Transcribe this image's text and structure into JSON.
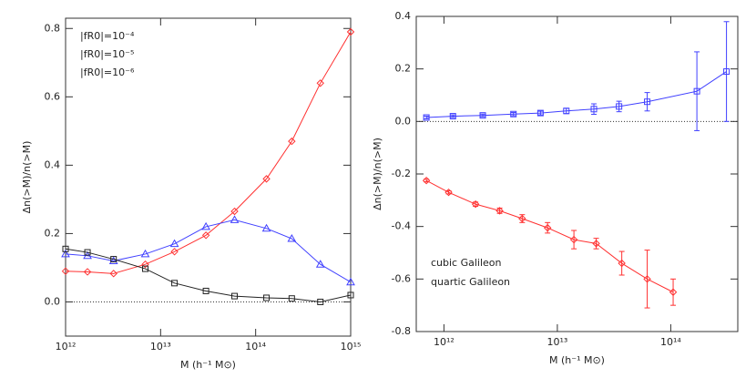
{
  "chart_data": [
    {
      "type": "line",
      "xscale": "log",
      "xlabel": "M  (h⁻¹ M⊙)",
      "ylabel": "Δn(>M)/n(>M)",
      "xlim": [
        1000000000000.0,
        1000000000000000.0
      ],
      "ylim": [
        -0.1,
        0.83
      ],
      "xticks": [
        {
          "value": 1000000000000.0,
          "label": "10¹²"
        },
        {
          "value": 10000000000000.0,
          "label": "10¹³"
        },
        {
          "value": 100000000000000.0,
          "label": "10¹⁴"
        },
        {
          "value": 1000000000000000.0,
          "label": "10¹⁵"
        }
      ],
      "yticks": [
        {
          "value": 0,
          "label": "0.0"
        },
        0.2,
        0.4,
        0.6,
        0.8
      ],
      "reference_line": 0,
      "legend": "upper left",
      "x": [
        1000000000000.0,
        1700000000000.0,
        3200000000000.0,
        6900000000000.0,
        14000000000000.0,
        30000000000000.0,
        60000000000000.0,
        130000000000000.0,
        240000000000000.0,
        480000000000000.0,
        1000000000000000.0
      ],
      "series": [
        {
          "name": "|fR0|=10⁻⁴",
          "color": "#ff3030",
          "marker": "diamond",
          "values": [
            0.09,
            0.088,
            0.083,
            0.11,
            0.147,
            0.195,
            0.265,
            0.36,
            0.47,
            0.64,
            0.79
          ]
        },
        {
          "name": "|fR0|=10⁻⁵",
          "color": "#4040ff",
          "marker": "triangle",
          "values": [
            0.14,
            0.135,
            0.12,
            0.14,
            0.17,
            0.22,
            0.24,
            0.215,
            0.185,
            0.11,
            0.058
          ]
        },
        {
          "name": "|fR0|=10⁻⁶",
          "color": "#222222",
          "marker": "square",
          "values": [
            0.155,
            0.145,
            0.125,
            0.097,
            0.055,
            0.032,
            0.017,
            0.012,
            0.01,
            0.0,
            0.02
          ]
        }
      ]
    },
    {
      "type": "errorbar",
      "xscale": "log",
      "xlabel": "M  (h⁻¹ M⊙)",
      "ylabel": "Δn(>M)/n(>M)",
      "xlim": [
        570000000000.0,
        390000000000000.0
      ],
      "ylim": [
        -0.8,
        0.4
      ],
      "xticks": [
        {
          "value": 1000000000000.0,
          "label": "10¹²"
        },
        {
          "value": 10000000000000.0,
          "label": "10¹³"
        },
        {
          "value": 100000000000000.0,
          "label": "10¹⁴"
        }
      ],
      "yticks": [
        -0.8,
        -0.6,
        -0.4,
        -0.2,
        {
          "value": 0,
          "label": "0.0"
        },
        0.2,
        0.4
      ],
      "reference_line": 0,
      "legend": "lower left",
      "series": [
        {
          "name": "cubic Galileon",
          "color": "#4040ff",
          "marker": "square",
          "x": [
            700000000000.0,
            1200000000000.0,
            2200000000000.0,
            4100000000000.0,
            7100000000000.0,
            12000000000000.0,
            21000000000000.0,
            35000000000000.0,
            62000000000000.0,
            170000000000000.0,
            310000000000000.0
          ],
          "values": [
            0.015,
            0.02,
            0.023,
            0.028,
            0.032,
            0.04,
            0.047,
            0.057,
            0.075,
            0.115,
            0.19
          ],
          "errors": [
            0.005,
            0.005,
            0.005,
            0.006,
            0.007,
            0.01,
            0.02,
            0.02,
            0.035,
            0.15,
            0.19
          ]
        },
        {
          "name": "quartic Galileon",
          "color": "#ff3030",
          "marker": "diamond",
          "x": [
            700000000000.0,
            1100000000000.0,
            1900000000000.0,
            3100000000000.0,
            4900000000000.0,
            8200000000000.0,
            14000000000000.0,
            22000000000000.0,
            37000000000000.0,
            62000000000000.0,
            105000000000000.0
          ],
          "values": [
            -0.225,
            -0.27,
            -0.315,
            -0.34,
            -0.37,
            -0.405,
            -0.45,
            -0.465,
            -0.54,
            -0.6,
            -0.65
          ],
          "errors": [
            0.005,
            0.006,
            0.008,
            0.01,
            0.015,
            0.02,
            0.035,
            0.02,
            0.045,
            0.11,
            0.05
          ]
        }
      ]
    }
  ]
}
